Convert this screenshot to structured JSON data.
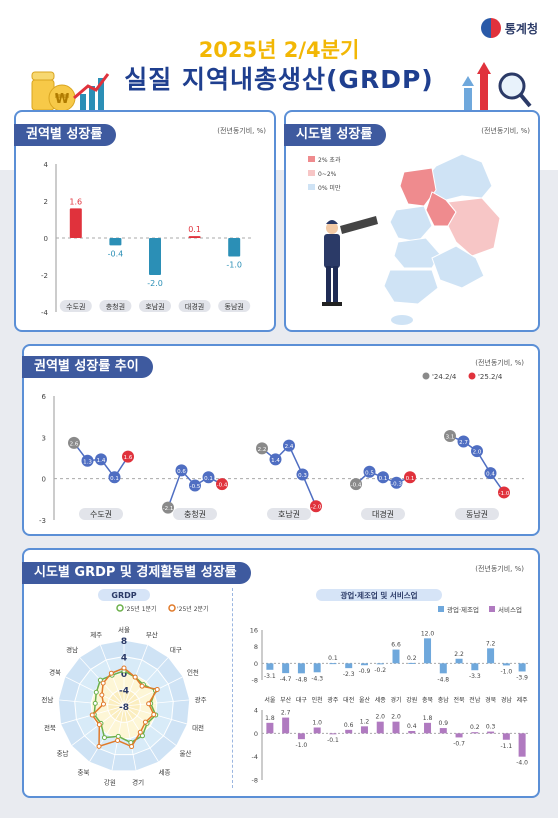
{
  "header": {
    "brand": "통계청",
    "title_year": "2025년 2/4분기",
    "title_main": "실질 지역내총생산(GRDP)"
  },
  "colors": {
    "navy": "#3e5a9f",
    "red": "#e0323c",
    "teal": "#2b8fb6",
    "blue": "#4f6ec2",
    "grey": "#8a8a8a",
    "map_high": "#ef8b8e",
    "map_mid": "#f7c6c6",
    "map_low": "#cfe3f5",
    "bar_mining": "#6fa8dc",
    "bar_service": "#b07ac0"
  },
  "panel1": {
    "title": "권역별 성장률",
    "unit": "(전년동기비, %)",
    "chart_data": {
      "type": "bar",
      "categories": [
        "수도권",
        "충청권",
        "호남권",
        "대경권",
        "동남권"
      ],
      "values": [
        1.6,
        -0.4,
        -2.0,
        0.1,
        -1.0
      ],
      "value_labels": [
        "1.6",
        "-0.4",
        "-2.0",
        "0.1",
        "-1.0"
      ],
      "ylim": [
        -4,
        4
      ],
      "yticks": [
        "4",
        "2",
        "0",
        "-2",
        "-4"
      ]
    }
  },
  "panel2": {
    "title": "시도별 성장률",
    "unit": "(전년동기비, %)",
    "legend": [
      "2% 초과",
      "0~2%",
      "0% 미만"
    ]
  },
  "panel3": {
    "title": "권역별 성장률 추이",
    "unit": "(전년동기비, %)",
    "legend": [
      "'24.2/4",
      "'25.2/4"
    ],
    "chart_data": {
      "type": "line",
      "ylim": [
        -3,
        6
      ],
      "yticks": [
        "6",
        "3",
        "0",
        "-3"
      ],
      "groups": [
        {
          "name": "수도권",
          "values": [
            2.6,
            1.3,
            1.4,
            0.1,
            1.6
          ],
          "labels": [
            "2.6",
            "1.3",
            "1.4",
            "0.1",
            "1.6"
          ]
        },
        {
          "name": "충청권",
          "values": [
            -2.1,
            0.6,
            -0.5,
            0.1,
            -0.4
          ],
          "labels": [
            "-2.1",
            "0.6",
            "-0.5",
            "0.1",
            "-0.4"
          ]
        },
        {
          "name": "호남권",
          "values": [
            2.2,
            1.4,
            2.4,
            0.3,
            -2.0
          ],
          "labels": [
            "2.2",
            "1.4",
            "2.4",
            "0.3",
            "-2.0"
          ]
        },
        {
          "name": "대경권",
          "values": [
            -0.4,
            0.5,
            0.1,
            -0.3,
            0.1
          ],
          "labels": [
            "-0.4",
            "0.5",
            "0.1",
            "-0.3",
            "0.1"
          ]
        },
        {
          "name": "동남권",
          "values": [
            3.1,
            2.7,
            2.0,
            0.4,
            -1.0
          ],
          "labels": [
            "3.1",
            "2.7",
            "2.0",
            "0.4",
            "-1.0"
          ]
        }
      ]
    }
  },
  "panel4": {
    "title": "시도별 GRDP 및 경제활동별 성장률",
    "unit": "(전년동기비, %)",
    "radar": {
      "title": "GRDP",
      "legend": [
        "'25년 1분기",
        "'25년 2분기"
      ],
      "chart_data": {
        "type": "radar",
        "categories": [
          "서울",
          "부산",
          "대구",
          "인천",
          "광주",
          "대전",
          "울산",
          "세종",
          "경기",
          "강원",
          "충북",
          "충남",
          "전북",
          "전남",
          "경북",
          "경남",
          "제주"
        ],
        "rticks": [
          "8",
          "4",
          "0",
          "-4",
          "-8"
        ],
        "rlim": [
          -8,
          8
        ],
        "series": [
          {
            "name": "'25년 1분기",
            "values": [
              0.5,
              -0.5,
              -1.0,
              0.5,
              -1.5,
              0.0,
              -1.0,
              0.5,
              1.0,
              -0.5,
              1.0,
              -1.0,
              -0.5,
              -1.0,
              -0.5,
              0.5,
              0.0
            ]
          },
          {
            "name": "'25년 2분기",
            "values": [
              1.2,
              -0.5,
              -1.5,
              1.0,
              -2.0,
              -0.5,
              -1.5,
              -0.5,
              2.0,
              0.5,
              3.5,
              -0.5,
              0.0,
              -3.0,
              -2.0,
              -0.5,
              0.5
            ]
          }
        ]
      }
    },
    "bars": {
      "title": "광업·제조업 및 서비스업",
      "legend": [
        "광업·제조업",
        "서비스업"
      ],
      "regions": [
        "서울",
        "부산",
        "대구",
        "인천",
        "광주",
        "대전",
        "울산",
        "세종",
        "경기",
        "강원",
        "충북",
        "충남",
        "전북",
        "전남",
        "경북",
        "경남",
        "제주"
      ],
      "chart_data": [
        {
          "type": "bar",
          "series": "광업·제조업",
          "values": [
            -3.1,
            -4.7,
            -4.8,
            -4.3,
            0.1,
            -2.3,
            -0.9,
            -0.2,
            6.6,
            0.2,
            12.0,
            -4.8,
            2.2,
            -3.3,
            7.2,
            -1.0,
            -3.9
          ],
          "labels": [
            "-3.1",
            "-4.7",
            "-4.8",
            "-4.3",
            "0.1",
            "-2.3",
            "-0.9",
            "-0.2",
            "6.6",
            "0.2",
            "12.0",
            "-4.8",
            "2.2",
            "-3.3",
            "7.2",
            "-1.0",
            "-3.9"
          ],
          "ylim": [
            -8,
            16
          ],
          "yticks": [
            "16",
            "8",
            "0",
            "-8"
          ]
        },
        {
          "type": "bar",
          "series": "서비스업",
          "values": [
            1.8,
            2.7,
            -1.0,
            1.0,
            -0.1,
            0.6,
            1.2,
            2.0,
            2.0,
            0.4,
            1.8,
            0.9,
            -0.7,
            0.2,
            0.3,
            -1.1,
            -4.0
          ],
          "labels": [
            "1.8",
            "2.7",
            "-1.0",
            "1.0",
            "-0.1",
            "0.6",
            "1.2",
            "2.0",
            "2.0",
            "0.4",
            "1.8",
            "0.9",
            "-0.7",
            "0.2",
            "0.3",
            "-1.1",
            "-4.0"
          ],
          "ylim": [
            -8,
            4
          ],
          "yticks": [
            "4",
            "0",
            "-4",
            "-8"
          ]
        }
      ]
    }
  }
}
